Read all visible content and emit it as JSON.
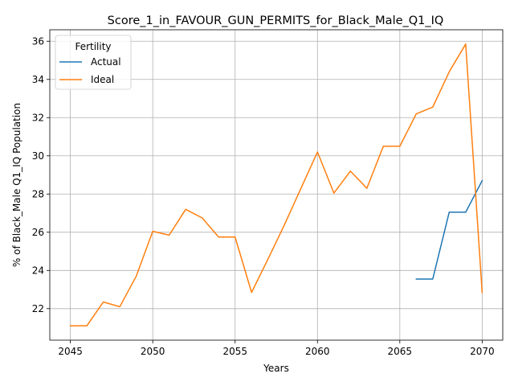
{
  "chart_data": {
    "type": "line",
    "title": "Score_1_in_FAVOUR_GUN_PERMITS_for_Black_Male_Q1_IQ",
    "xlabel": "Years",
    "ylabel": "% of Black_Male Q1_IQ Population",
    "xlim": [
      2043.75,
      2071.25
    ],
    "ylim": [
      20.35,
      36.6
    ],
    "xticks": [
      2045,
      2050,
      2055,
      2060,
      2065,
      2070
    ],
    "yticks": [
      22,
      24,
      26,
      28,
      30,
      32,
      34,
      36
    ],
    "grid": true,
    "legend": {
      "title": "Fertility",
      "placement": "top-left"
    },
    "series": [
      {
        "name": "Actual",
        "color": "#1f77b4",
        "x": [
          2066,
          2067,
          2068,
          2069,
          2070
        ],
        "values": [
          23.55,
          23.55,
          27.05,
          27.05,
          28.7
        ]
      },
      {
        "name": "Ideal",
        "color": "#ff7f0e",
        "x": [
          2045,
          2046,
          2047,
          2048,
          2049,
          2050,
          2051,
          2052,
          2053,
          2054,
          2055,
          2056,
          2057,
          2058,
          2059,
          2060,
          2061,
          2062,
          2063,
          2064,
          2065,
          2066,
          2067,
          2068,
          2069,
          2070
        ],
        "values": [
          21.1,
          21.1,
          22.35,
          22.1,
          23.7,
          26.05,
          25.85,
          27.2,
          26.75,
          25.75,
          25.75,
          22.85,
          24.6,
          26.4,
          28.3,
          30.2,
          28.05,
          29.2,
          28.3,
          30.5,
          30.5,
          32.2,
          32.55,
          34.4,
          35.85,
          22.85
        ]
      }
    ]
  }
}
